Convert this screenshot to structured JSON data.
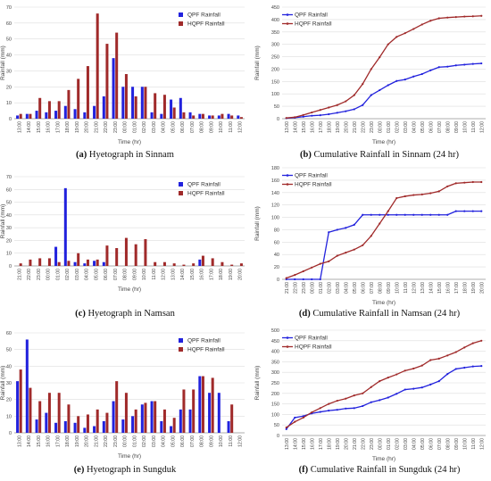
{
  "colors": {
    "qpf": "#2222dd",
    "hqpf": "#a02a2a",
    "grid": "#dddddd",
    "axis": "#999999"
  },
  "captions": [
    {
      "letter": "(a)",
      "text": "Hyetograph in Sinnam"
    },
    {
      "letter": "(b)",
      "text": "Cumulative Rainfall in Sinnam (24 hr)"
    },
    {
      "letter": "(c)",
      "text": "Hyetograph in Namsan"
    },
    {
      "letter": "(d)",
      "text": "Cumulative Rainfall in Namsan (24 hr)"
    },
    {
      "letter": "(e)",
      "text": "Hyetograph in Sungduk"
    },
    {
      "letter": "(f)",
      "text": "Cumulative Rainfall in Sungduk (24 hr)"
    }
  ],
  "chart_data": [
    {
      "id": "a",
      "type": "bar",
      "xlabel": "Time (hr)",
      "ylabel": "Rainfall (mm)",
      "ylim": [
        0,
        70
      ],
      "yticks": [
        0,
        10,
        20,
        30,
        40,
        50,
        60,
        70
      ],
      "legend_position": "top-right",
      "grid": true,
      "categories": [
        "13:00",
        "14:00",
        "15:00",
        "16:00",
        "17:00",
        "18:00",
        "19:00",
        "20:00",
        "21:00",
        "22:00",
        "23:00",
        "00:00",
        "01:00",
        "02:00",
        "03:00",
        "04:00",
        "05:00",
        "06:00",
        "07:00",
        "08:00",
        "09:00",
        "10:00",
        "11:00",
        "12:00"
      ],
      "series": [
        {
          "name": "QPF Rainfall",
          "values": [
            2,
            3,
            5,
            4,
            5,
            8,
            6,
            4,
            8,
            14,
            38,
            20,
            20,
            20,
            4,
            3,
            12,
            13,
            4,
            3,
            2,
            2,
            3,
            2
          ]
        },
        {
          "name": "HQPF Rainfall",
          "values": [
            3,
            3,
            13,
            11,
            11,
            18,
            25,
            33,
            66,
            47,
            54,
            28,
            14,
            20,
            16,
            15,
            7,
            4,
            2,
            3,
            2,
            3,
            2,
            1
          ]
        }
      ]
    },
    {
      "id": "b",
      "type": "line",
      "xlabel": "Time (hr)",
      "ylabel": "Rainfall (mm)",
      "ylim": [
        0,
        450
      ],
      "yticks": [
        0,
        50,
        100,
        150,
        200,
        250,
        300,
        350,
        400,
        450
      ],
      "legend_position": "top-left",
      "grid": true,
      "categories": [
        "13:00",
        "14:00",
        "15:00",
        "16:00",
        "17:00",
        "18:00",
        "19:00",
        "20:00",
        "21:00",
        "22:00",
        "23:00",
        "00:00",
        "01:00",
        "02:00",
        "03:00",
        "04:00",
        "05:00",
        "06:00",
        "07:00",
        "08:00",
        "09:00",
        "10:00",
        "11:00",
        "12:00"
      ],
      "series": [
        {
          "name": "QPF Rainfall",
          "values": [
            2,
            4,
            8,
            12,
            14,
            18,
            24,
            30,
            38,
            55,
            95,
            115,
            135,
            152,
            158,
            170,
            180,
            195,
            208,
            210,
            215,
            218,
            221,
            223
          ]
        },
        {
          "name": "HQPF Rainfall",
          "values": [
            3,
            6,
            15,
            25,
            35,
            45,
            55,
            70,
            95,
            140,
            200,
            248,
            300,
            330,
            345,
            362,
            380,
            395,
            405,
            408,
            410,
            412,
            413,
            415
          ]
        }
      ]
    },
    {
      "id": "c",
      "type": "bar",
      "xlabel": "Time (hr)",
      "ylabel": "Rainfall (mm)",
      "ylim": [
        0,
        70
      ],
      "yticks": [
        0,
        10,
        20,
        30,
        40,
        50,
        60,
        70
      ],
      "legend_position": "top-right",
      "grid": true,
      "categories": [
        "21:00",
        "22:00",
        "23:00",
        "00:00",
        "01:00",
        "02:00",
        "03:00",
        "04:00",
        "05:00",
        "06:00",
        "07:00",
        "08:00",
        "09:00",
        "10:00",
        "11:00",
        "12:00",
        "13:00",
        "14:00",
        "15:00",
        "16:00",
        "17:00",
        "18:00",
        "19:00",
        "20:00"
      ],
      "series": [
        {
          "name": "QPF Rainfall",
          "values": [
            0,
            0,
            0,
            0,
            15,
            61,
            3,
            2,
            4,
            3,
            0,
            0,
            0,
            0,
            0,
            0,
            0,
            0,
            0,
            5,
            0,
            0,
            0,
            0
          ]
        },
        {
          "name": "HQPF Rainfall",
          "values": [
            2,
            5,
            6,
            6,
            3,
            4,
            10,
            5,
            5,
            16,
            14,
            22,
            17,
            21,
            3,
            3,
            2,
            1,
            2,
            8,
            6,
            3,
            1,
            2
          ]
        }
      ]
    },
    {
      "id": "d",
      "type": "line",
      "xlabel": "Time (hr)",
      "ylabel": "Rainfall (mm)",
      "ylim": [
        0,
        180
      ],
      "yticks": [
        0,
        20,
        40,
        60,
        80,
        100,
        120,
        140,
        160,
        180
      ],
      "legend_position": "top-left",
      "grid": true,
      "categories": [
        "21:00",
        "22:00",
        "23:00",
        "00:00",
        "01:00",
        "02:00",
        "03:00",
        "04:00",
        "05:00",
        "06:00",
        "07:00",
        "08:00",
        "09:00",
        "10:00",
        "11:00",
        "12:00",
        "13:00",
        "14:00",
        "15:00",
        "16:00",
        "17:00",
        "18:00",
        "19:00",
        "20:00"
      ],
      "series": [
        {
          "name": "QPF Rainfall",
          "values": [
            0,
            0,
            0,
            0,
            0,
            76,
            80,
            83,
            88,
            104,
            104,
            104,
            104,
            104,
            104,
            104,
            104,
            104,
            104,
            104,
            110,
            110,
            110,
            110
          ]
        },
        {
          "name": "HQPF Rainfall",
          "values": [
            2,
            7,
            13,
            19,
            25,
            29,
            38,
            43,
            48,
            55,
            70,
            90,
            110,
            131,
            134,
            136,
            137,
            139,
            142,
            150,
            155,
            156,
            157,
            157
          ]
        }
      ]
    },
    {
      "id": "e",
      "type": "bar",
      "xlabel": "Time (hr)",
      "ylabel": "Rainfall (mm)",
      "ylim": [
        0,
        60
      ],
      "yticks": [
        0,
        10,
        20,
        30,
        40,
        50,
        60
      ],
      "legend_position": "top-right",
      "grid": true,
      "categories": [
        "13:00",
        "14:00",
        "15:00",
        "16:00",
        "17:00",
        "18:00",
        "19:00",
        "20:00",
        "21:00",
        "22:00",
        "23:00",
        "00:00",
        "01:00",
        "02:00",
        "03:00",
        "04:00",
        "05:00",
        "06:00",
        "07:00",
        "08:00",
        "09:00",
        "10:00",
        "11:00",
        "12:00"
      ],
      "series": [
        {
          "name": "QPF Rainfall",
          "values": [
            31,
            56,
            8,
            12,
            6,
            7,
            6,
            3,
            4,
            7,
            19,
            8,
            10,
            17,
            19,
            7,
            4,
            14,
            14,
            34,
            24,
            24,
            7,
            0
          ]
        },
        {
          "name": "HQPF Rainfall",
          "values": [
            38,
            27,
            19,
            24,
            24,
            17,
            10,
            11,
            14,
            12,
            31,
            24,
            14,
            18,
            19,
            14,
            9,
            26,
            26,
            34,
            33,
            0,
            17,
            0
          ]
        }
      ]
    },
    {
      "id": "f",
      "type": "line",
      "xlabel": "Time (hr)",
      "ylabel": "Rainfall (mm)",
      "ylim": [
        0,
        500
      ],
      "yticks": [
        0,
        50,
        100,
        150,
        200,
        250,
        300,
        350,
        400,
        450,
        500
      ],
      "legend_position": "top-left",
      "grid": true,
      "categories": [
        "13:00",
        "14:00",
        "15:00",
        "16:00",
        "17:00",
        "18:00",
        "19:00",
        "20:00",
        "21:00",
        "22:00",
        "23:00",
        "00:00",
        "01:00",
        "02:00",
        "03:00",
        "04:00",
        "05:00",
        "06:00",
        "07:00",
        "08:00",
        "09:00",
        "10:00",
        "11:00",
        "12:00"
      ],
      "series": [
        {
          "name": "QPF Rainfall",
          "values": [
            30,
            85,
            92,
            105,
            112,
            118,
            122,
            128,
            130,
            140,
            158,
            168,
            180,
            198,
            218,
            222,
            228,
            242,
            258,
            292,
            316,
            322,
            328,
            330
          ]
        },
        {
          "name": "HQPF Rainfall",
          "values": [
            38,
            65,
            85,
            110,
            130,
            150,
            165,
            175,
            190,
            200,
            230,
            258,
            275,
            290,
            308,
            318,
            332,
            358,
            365,
            380,
            396,
            418,
            438,
            450
          ]
        }
      ]
    }
  ]
}
